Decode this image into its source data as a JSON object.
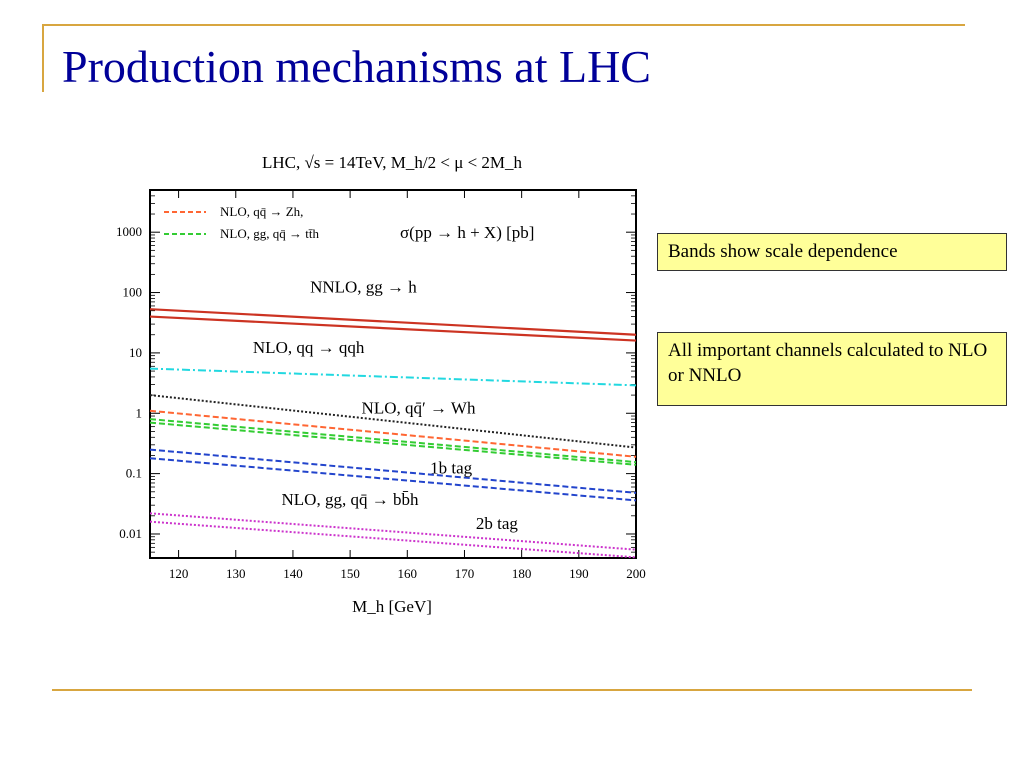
{
  "slide": {
    "title": "Production mechanisms at LHC"
  },
  "notes": [
    "Bands show scale dependence",
    "All important channels calculated to NLO or NNLO"
  ],
  "chart_data": {
    "type": "line",
    "title": "LHC, √s = 14TeV, M_h/2 < μ < 2M_h",
    "xlabel": "M_h [GeV]",
    "ylabel": "",
    "y_scale": "log",
    "xlim": [
      115,
      200
    ],
    "ylim": [
      0.004,
      5000
    ],
    "x_ticks": [
      "120",
      "130",
      "140",
      "150",
      "160",
      "170",
      "180",
      "190",
      "200"
    ],
    "y_ticks": [
      "0.01",
      "0.1",
      "1",
      "10",
      "100",
      "1000"
    ],
    "annotation": "σ(pp → h + X) [pb]",
    "legend": [
      {
        "label": "NLO, qq̄ → Zh,",
        "color": "#ff6633"
      },
      {
        "label": "NLO, gg, qq̄ → tt̄h",
        "color": "#33cc33"
      }
    ],
    "series": [
      {
        "name": "NNLO, gg → h",
        "color": "#cc3322",
        "style": "solid",
        "x": [
          115,
          200
        ],
        "y": [
          53,
          20
        ]
      },
      {
        "color": "#cc3322",
        "style": "solid",
        "x": [
          115,
          200
        ],
        "y": [
          40,
          16
        ]
      },
      {
        "name": "NLO, qq → qqh",
        "color": "#22d8e0",
        "style": "dashdot",
        "x": [
          115,
          200
        ],
        "y": [
          5.5,
          2.9
        ]
      },
      {
        "name": "NLO, qq̄′ → Wh",
        "color": "#222222",
        "style": "dotted",
        "x": [
          115,
          200
        ],
        "y": [
          2.0,
          0.27
        ]
      },
      {
        "color": "#ff6633",
        "style": "dashed",
        "x": [
          115,
          200
        ],
        "y": [
          1.1,
          0.19
        ]
      },
      {
        "color": "#33cc33",
        "style": "dashed",
        "x": [
          115,
          200
        ],
        "y": [
          0.8,
          0.155
        ]
      },
      {
        "color": "#33cc33",
        "style": "dashed",
        "x": [
          115,
          200
        ],
        "y": [
          0.7,
          0.14
        ]
      },
      {
        "name": "1b tag",
        "color": "#2244cc",
        "style": "dashed",
        "x": [
          115,
          200
        ],
        "y": [
          0.25,
          0.048
        ]
      },
      {
        "color": "#2244cc",
        "style": "dashed",
        "x": [
          115,
          200
        ],
        "y": [
          0.18,
          0.036
        ]
      },
      {
        "name": "NLO, gg, qq̄ → bb̄h",
        "color": "#cc33cc",
        "style": "dotted",
        "x": [
          115,
          200
        ],
        "y": [
          0.022,
          0.0055
        ]
      },
      {
        "color": "#cc33cc",
        "style": "dotted",
        "x": [
          115,
          200
        ],
        "y": [
          0.016,
          0.0041
        ]
      }
    ],
    "labels": [
      {
        "text": "NNLO, gg → h",
        "x": 143,
        "y": 100
      },
      {
        "text": "NLO, qq → qqh",
        "x": 133,
        "y": 10
      },
      {
        "text": "NLO, qq̄′ → Wh",
        "x": 152,
        "y": 1
      },
      {
        "text": "1b tag",
        "x": 164,
        "y": 0.1
      },
      {
        "text": "NLO, gg, qq̄ → bb̄h",
        "x": 138,
        "y": 0.03
      },
      {
        "text": "2b tag",
        "x": 172,
        "y": 0.012
      }
    ]
  }
}
